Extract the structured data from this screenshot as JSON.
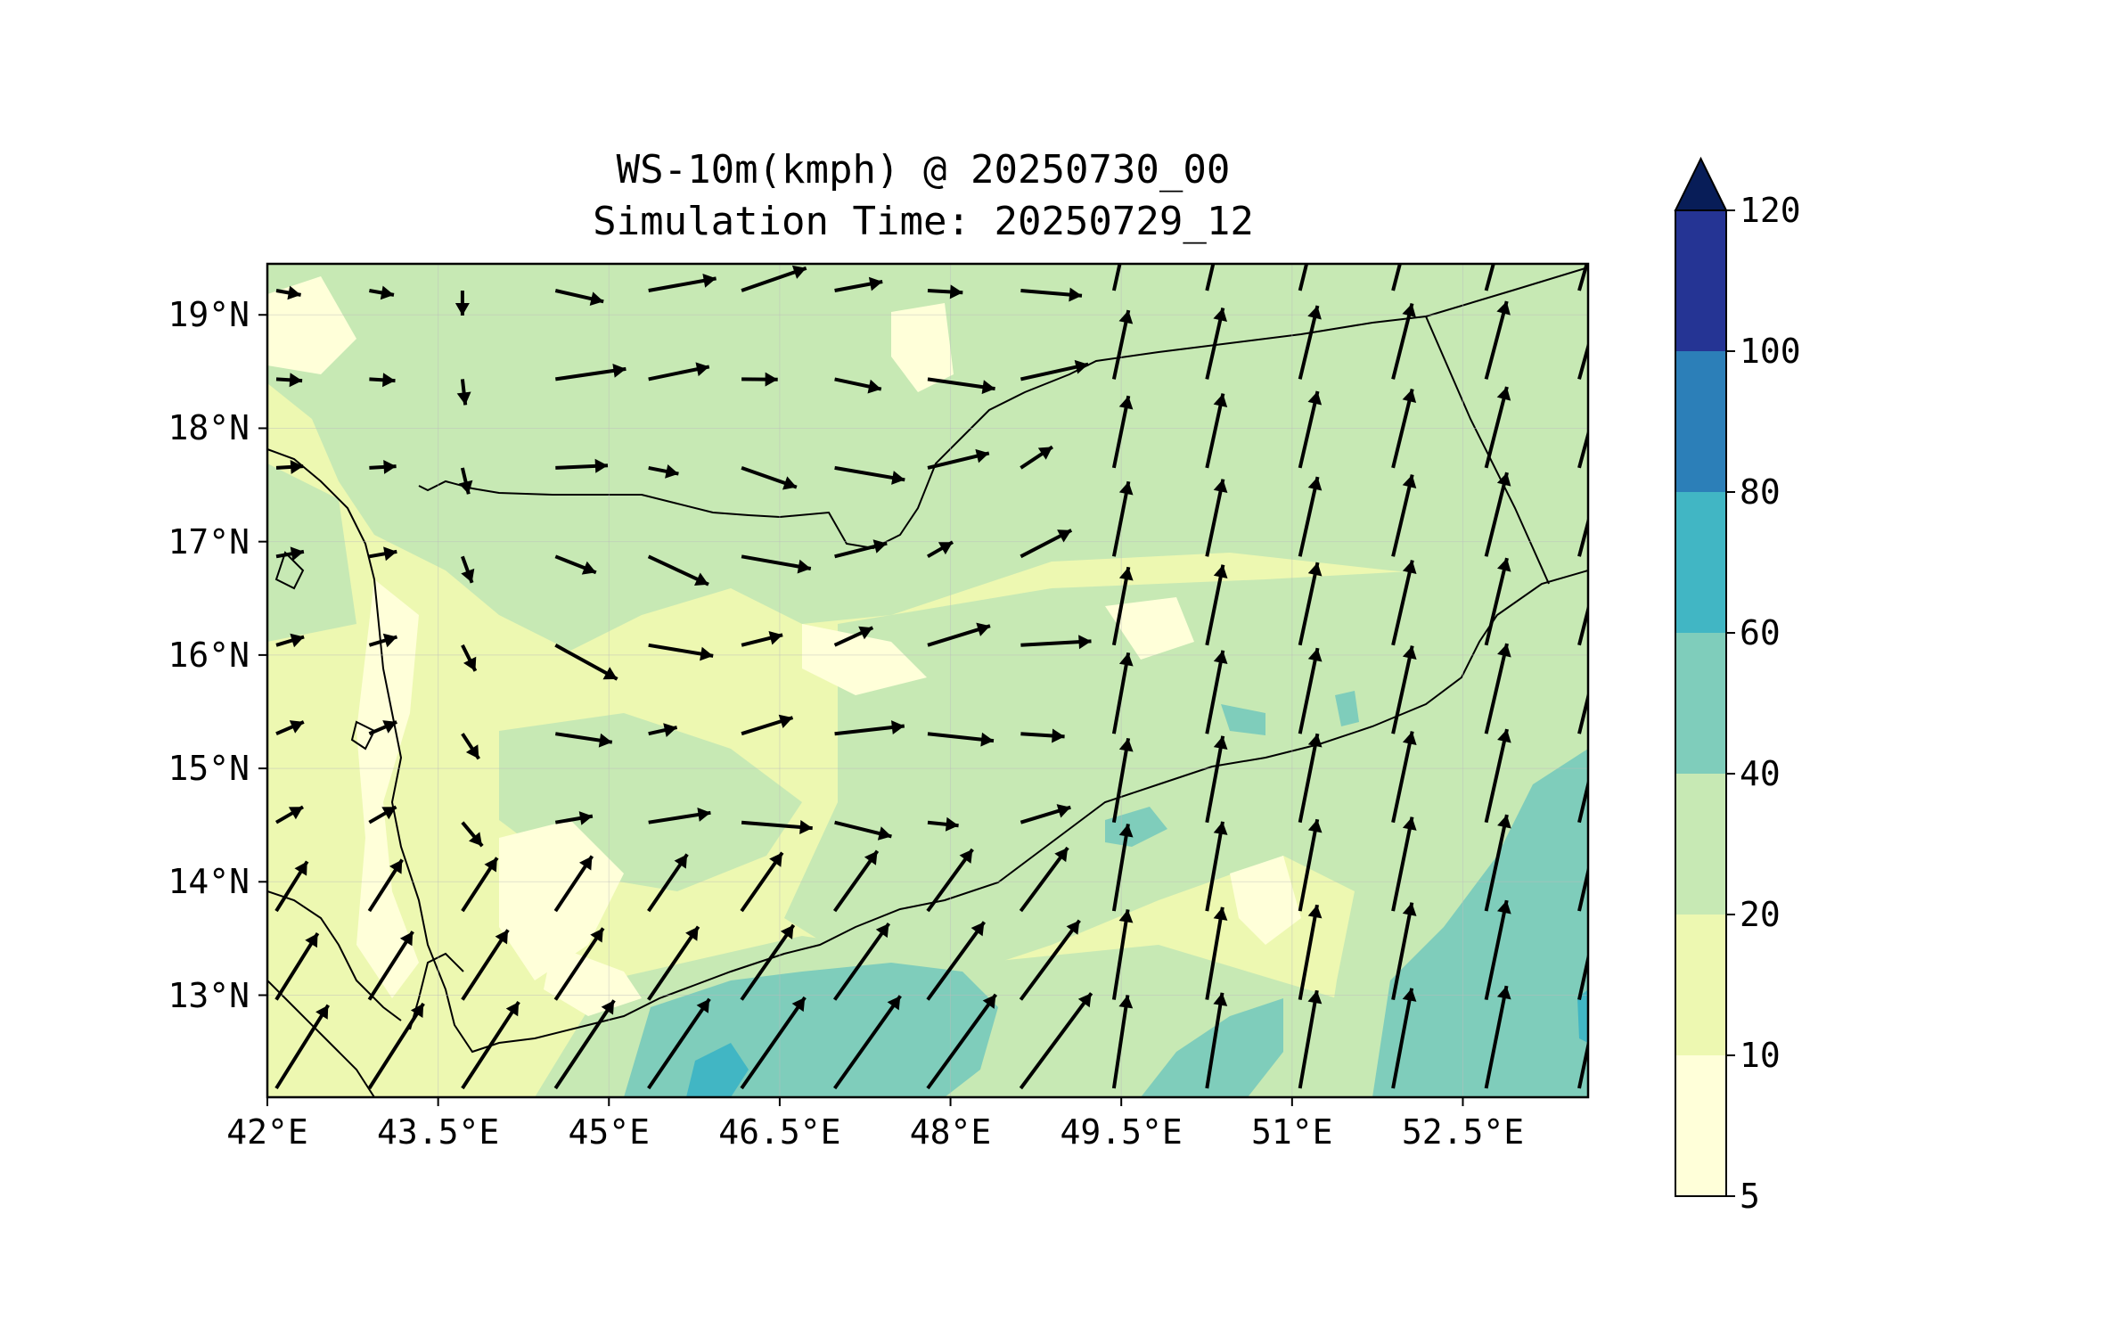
{
  "title": {
    "line1": "WS-10m(kmph) @ 20250730_00",
    "line2": "Simulation Time: 20250729_12"
  },
  "map": {
    "lon_range": [
      42.0,
      53.6
    ],
    "lat_range": [
      12.1,
      19.45
    ],
    "lat_ticks": [
      {
        "value": 19,
        "label": "19°N"
      },
      {
        "value": 18,
        "label": "18°N"
      },
      {
        "value": 17,
        "label": "17°N"
      },
      {
        "value": 16,
        "label": "16°N"
      },
      {
        "value": 15,
        "label": "15°N"
      },
      {
        "value": 14,
        "label": "14°N"
      },
      {
        "value": 13,
        "label": "13°N"
      }
    ],
    "lon_ticks": [
      {
        "value": 42.0,
        "label": "42°E"
      },
      {
        "value": 43.5,
        "label": "43.5°E"
      },
      {
        "value": 45.0,
        "label": "45°E"
      },
      {
        "value": 46.5,
        "label": "46.5°E"
      },
      {
        "value": 48.0,
        "label": "48°E"
      },
      {
        "value": 49.5,
        "label": "49.5°E"
      },
      {
        "value": 51.0,
        "label": "51°E"
      },
      {
        "value": 52.5,
        "label": "52.5°E"
      }
    ],
    "gridlines": true
  },
  "colorbar": {
    "levels": [
      "5",
      "10",
      "20",
      "40",
      "60",
      "80",
      "100",
      "120"
    ],
    "colors": [
      "#ffffd9",
      "#edf8b1",
      "#c7e9b4",
      "#7fcdbb",
      "#41b6c4",
      "#2c7fb8",
      "#253494",
      "#081d58"
    ],
    "extend": "max"
  },
  "colors": {
    "land_base": "#edf8b1",
    "calm": "#ffffd9",
    "moderate": "#c7e9b4",
    "strong": "#7fcdbb",
    "very_strong": "#41b6c4",
    "coast": "#000000",
    "vector": "#000000"
  }
}
